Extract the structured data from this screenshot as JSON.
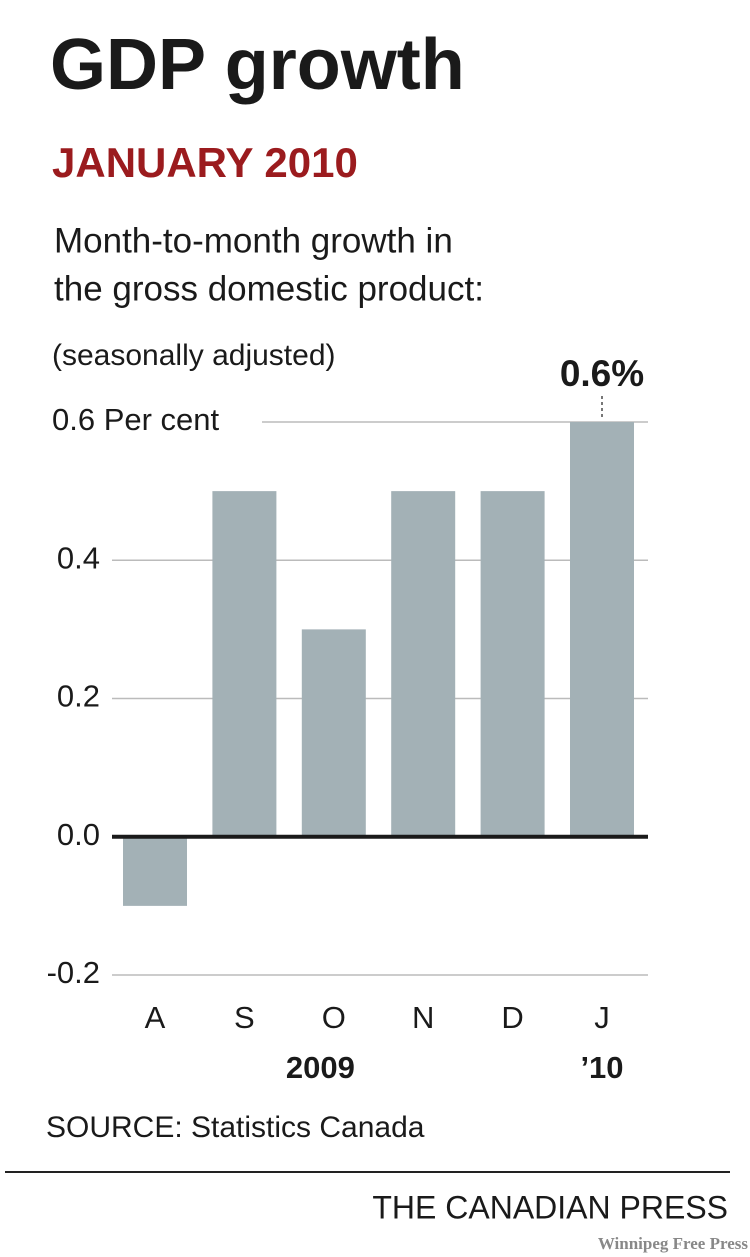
{
  "chart_data": {
    "type": "bar",
    "title": "GDP growth",
    "subtitle": "JANUARY 2010",
    "description": [
      "Month-to-month growth in",
      "the gross domestic product:"
    ],
    "note": "(seasonally adjusted)",
    "categories": [
      "A",
      "S",
      "O",
      "N",
      "D",
      "J"
    ],
    "x_group_labels": [
      "2009",
      "’10"
    ],
    "values": [
      -0.1,
      0.5,
      0.3,
      0.5,
      0.5,
      0.6
    ],
    "value_labels": [
      null,
      null,
      null,
      null,
      null,
      "0.6%"
    ],
    "color": "#a3b1b6",
    "ylim": [
      -0.2,
      0.6
    ],
    "yticks": [
      -0.2,
      {
        "value": 0,
        "label": "0.0"
      },
      0.2,
      0.4,
      {
        "value": 0.6,
        "label": "0.6 Per cent"
      }
    ],
    "grid": true,
    "source": "SOURCE: Statistics Canada",
    "credit": "THE CANADIAN PRESS",
    "watermark": "Winnipeg Free Press"
  }
}
